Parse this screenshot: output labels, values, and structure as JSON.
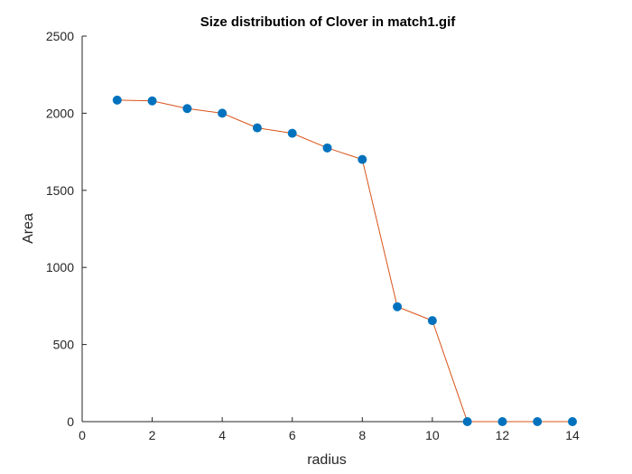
{
  "chart_data": {
    "type": "line",
    "title": "Size distribution of Clover in match1.gif",
    "xlabel": "radius",
    "ylabel": "Area",
    "xlim": [
      0,
      14
    ],
    "ylim": [
      0,
      2500
    ],
    "xticks": [
      0,
      2,
      4,
      6,
      8,
      10,
      12,
      14
    ],
    "yticks": [
      0,
      500,
      1000,
      1500,
      2000,
      2500
    ],
    "grid": false,
    "legend": "none",
    "series": [
      {
        "x": [
          1,
          2,
          3,
          4,
          5,
          6,
          7,
          8,
          9,
          10,
          11,
          12,
          13,
          14
        ],
        "values": [
          2085,
          2080,
          2030,
          2000,
          1905,
          1870,
          1775,
          1700,
          745,
          655,
          0,
          0,
          0,
          0
        ],
        "line_color": "#d95319",
        "marker_color": "#0072bd",
        "marker": "circle"
      }
    ]
  }
}
